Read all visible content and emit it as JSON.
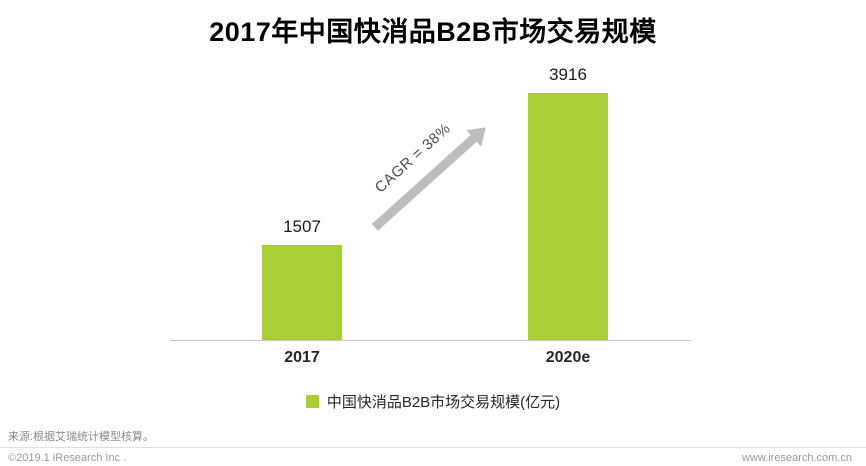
{
  "title": "2017年中国快消品B2B市场交易规模",
  "chart_data": {
    "type": "bar",
    "title": "2017年中国快消品B2B市场交易规模",
    "categories": [
      "2017",
      "2020e"
    ],
    "values": [
      1507,
      3916
    ],
    "xlabel": "",
    "ylabel": "",
    "ylim": [
      0,
      4000
    ],
    "grid": false,
    "legend": [
      "中国快消品B2B市场交易规模(亿元)"
    ],
    "legend_position": "bottom-center",
    "annotation": "CAGR = 38%",
    "bar_color": "#a9ce38",
    "arrow_color": "#bdbdbd"
  },
  "footer": {
    "source": "来源:根据艾瑞统计模型核算。",
    "copyright": "©2019.1 iResearch Inc .",
    "website": "www.iresearch.com.cn"
  }
}
